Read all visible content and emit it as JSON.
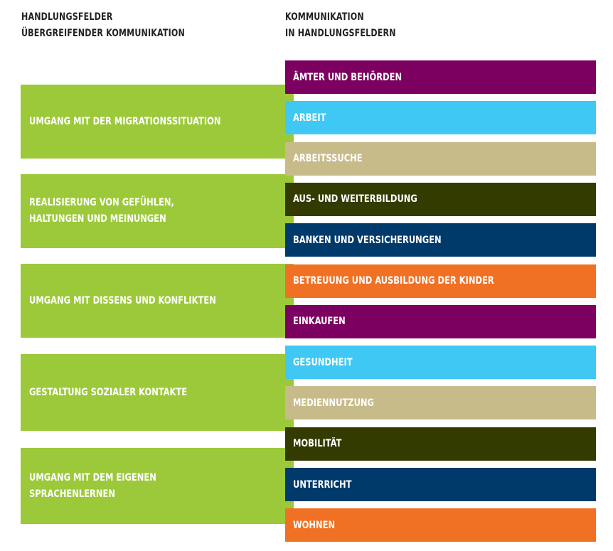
{
  "headers": {
    "left": "HANDLUNGSFELDER\nÜBERGREIFENDER KOMMUNIKATION",
    "right": "KOMMUNIKATION\nIN HANDLUNGSFELDERN"
  },
  "colors": {
    "green": "#9cc93a",
    "purple": "#7c0060",
    "blue": "#40c8f4",
    "beige": "#c8bb8a",
    "olive": "#333b00",
    "navy": "#003a6a",
    "orange": "#f07024"
  },
  "left_fields": [
    "UMGANG MIT DER MIGRATIONSSITUATION",
    "REALISIERUNG VON GEFÜHLEN,\nHALTUNGEN UND MEINUNGEN",
    "UMGANG MIT DISSENS UND KONFLIKTEN",
    "GESTALTUNG SOZIALER KONTAKTE",
    "UMGANG MIT DEM EIGENEN\nSPRACHENLERNEN"
  ],
  "right_fields": [
    {
      "label": "ÄMTER UND BEHÖRDEN",
      "color": "purple"
    },
    {
      "label": "ARBEIT",
      "color": "blue"
    },
    {
      "label": "ARBEITSSUCHE",
      "color": "beige"
    },
    {
      "label": "AUS- UND WEITERBILDUNG",
      "color": "olive"
    },
    {
      "label": "BANKEN UND VERSICHERUNGEN",
      "color": "navy"
    },
    {
      "label": "BETREUUNG UND AUSBILDUNG DER KINDER",
      "color": "orange"
    },
    {
      "label": "EINKAUFEN",
      "color": "purple"
    },
    {
      "label": "GESUNDHEIT",
      "color": "blue"
    },
    {
      "label": "MEDIENNUTZUNG",
      "color": "beige"
    },
    {
      "label": "MOBILITÄT",
      "color": "olive"
    },
    {
      "label": "UNTERRICHT",
      "color": "navy"
    },
    {
      "label": "WOHNEN",
      "color": "orange"
    }
  ]
}
